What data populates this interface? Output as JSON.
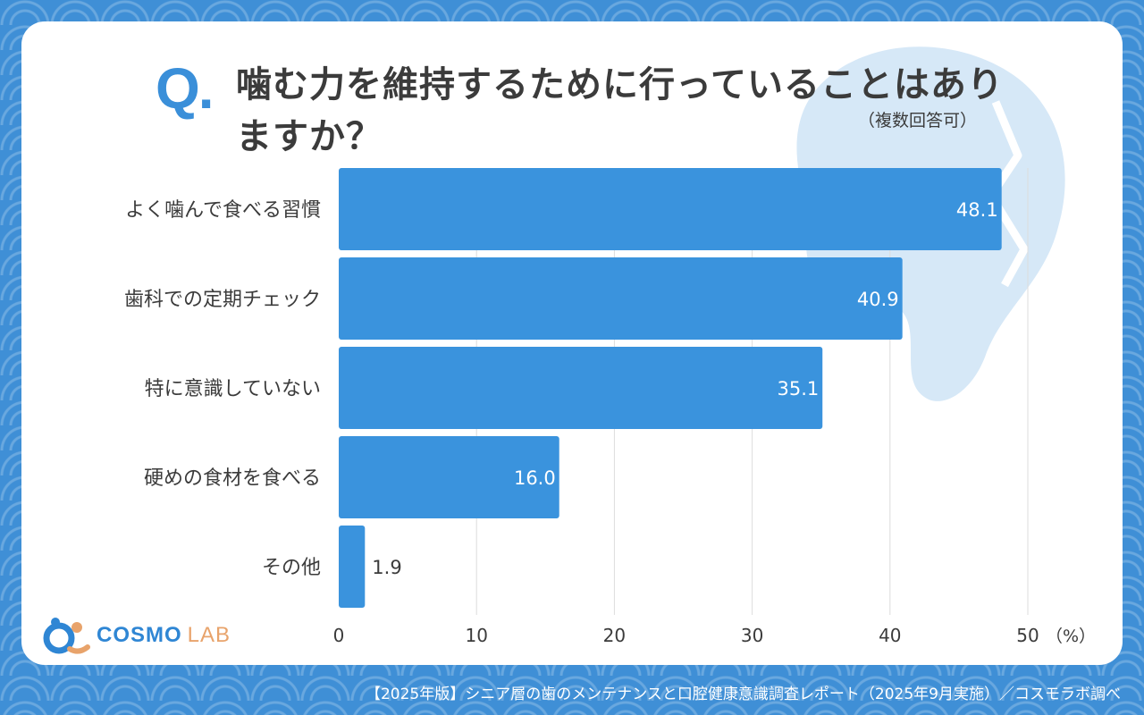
{
  "header": {
    "q_mark": "Q.",
    "title": "噛む力を維持するために行っていることはありますか？",
    "note": "（複数回答可）"
  },
  "brand": {
    "name": "COSMO",
    "suffix": "LAB"
  },
  "footer": {
    "source": "【2025年版】シニア層の歯のメンテナンスと口腔健康意識調査レポート（2025年9月実施）／コスモラボ調べ"
  },
  "colors": {
    "bar": "#3a93dd",
    "accent": "#3a8fd9",
    "background": "#3f8fd6",
    "tooth": "#d6e8f7"
  },
  "icons": [
    "tooth-icon",
    "cosmo-logo-icon"
  ],
  "chart_data": {
    "type": "bar",
    "orientation": "horizontal",
    "categories": [
      "よく噛んで食べる習慣",
      "歯科での定期チェック",
      "特に意識していない",
      "硬めの食材を食べる",
      "その他"
    ],
    "values": [
      48.1,
      40.9,
      35.1,
      16.0,
      1.9
    ],
    "value_labels": [
      "48.1",
      "40.9",
      "35.1",
      "16.0",
      "1.9"
    ],
    "xlim": [
      0,
      50
    ],
    "xticks": [
      "0",
      "10",
      "20",
      "30",
      "40",
      "50"
    ],
    "unit_label": "（%）",
    "grid": true
  }
}
